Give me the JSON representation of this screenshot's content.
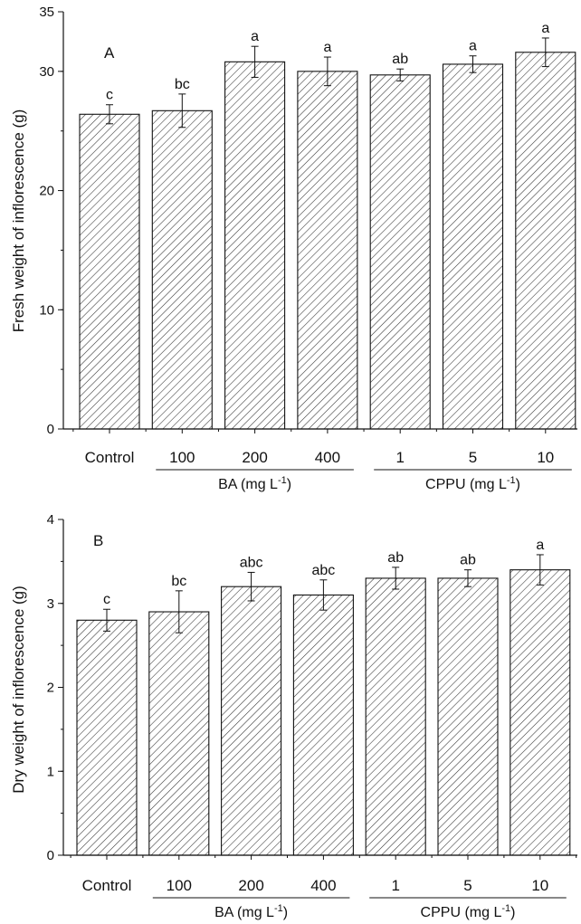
{
  "colors": {
    "ink": "#111111",
    "bar_fill": "#ffffff",
    "hatch": "#333333"
  },
  "chart_data": [
    {
      "type": "bar",
      "panel_label": "A",
      "ylabel": "Fresh weight of inflorescence (g)",
      "ylim": [
        0,
        35
      ],
      "yticks": [
        0,
        10,
        20,
        30,
        35
      ],
      "y_minor_step": 5,
      "categories": [
        "Control",
        "100",
        "200",
        "400",
        "1",
        "5",
        "10"
      ],
      "values": [
        26.4,
        26.7,
        30.8,
        30.0,
        29.7,
        30.6,
        31.6
      ],
      "errors": [
        0.8,
        1.4,
        1.3,
        1.2,
        0.5,
        0.7,
        1.2
      ],
      "significance": [
        "c",
        "bc",
        "a",
        "a",
        "ab",
        "a",
        "a"
      ],
      "groups": [
        {
          "label": "BA (mg L",
          "superscript": "-1",
          "close": ")",
          "from": 1,
          "to": 3
        },
        {
          "label": "CPPU (mg L",
          "superscript": "-1",
          "close": ")",
          "from": 4,
          "to": 6
        }
      ],
      "pattern": "diagonal-hatch",
      "grid": false
    },
    {
      "type": "bar",
      "panel_label": "B",
      "ylabel": "Dry weight of inflorescence (g)",
      "ylim": [
        0,
        4
      ],
      "yticks": [
        0,
        1,
        2,
        3,
        4
      ],
      "y_minor_step": 0.5,
      "categories": [
        "Control",
        "100",
        "200",
        "400",
        "1",
        "5",
        "10"
      ],
      "values": [
        2.8,
        2.9,
        3.2,
        3.1,
        3.3,
        3.3,
        3.4
      ],
      "errors": [
        0.13,
        0.25,
        0.17,
        0.18,
        0.13,
        0.1,
        0.18
      ],
      "significance": [
        "c",
        "bc",
        "abc",
        "abc",
        "ab",
        "ab",
        "a"
      ],
      "groups": [
        {
          "label": "BA (mg L",
          "superscript": "-1",
          "close": ")",
          "from": 1,
          "to": 3
        },
        {
          "label": "CPPU (mg L",
          "superscript": "-1",
          "close": ")",
          "from": 4,
          "to": 6
        }
      ],
      "pattern": "diagonal-hatch",
      "grid": false
    }
  ]
}
